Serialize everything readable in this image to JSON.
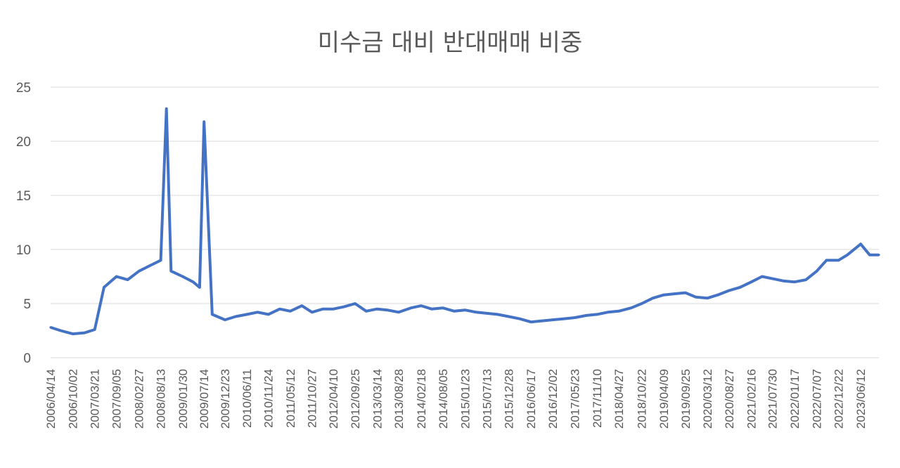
{
  "chart_data": {
    "type": "line",
    "title": "미수금 대비 반대매매 비중",
    "xlabel": "",
    "ylabel": "",
    "ylim": [
      0,
      25
    ],
    "yticks": [
      0,
      5,
      10,
      15,
      20,
      25
    ],
    "grid": true,
    "legend": "none",
    "colors": {
      "line": "#4472c4",
      "grid": "#d9d9d9",
      "text": "#595959"
    },
    "x_range": [
      "2006/04/14",
      "2023/10/31"
    ],
    "xtick_labels": [
      "2006/04/14",
      "2006/10/02",
      "2007/03/21",
      "2007/09/05",
      "2008/02/27",
      "2008/08/13",
      "2009/01/30",
      "2009/07/14",
      "2009/12/23",
      "2010/06/11",
      "2010/11/24",
      "2011/05/12",
      "2011/10/27",
      "2012/04/10",
      "2012/09/25",
      "2013/03/14",
      "2013/08/28",
      "2014/02/18",
      "2014/08/05",
      "2015/01/23",
      "2015/07/13",
      "2015/12/28",
      "2016/06/17",
      "2016/12/02",
      "2017/05/23",
      "2017/11/10",
      "2018/04/27",
      "2018/10/22",
      "2019/04/09",
      "2019/09/25",
      "2020/03/12",
      "2020/08/27",
      "2021/02/16",
      "2021/07/30",
      "2022/01/17",
      "2022/07/07",
      "2022/12/22",
      "2023/06/12"
    ],
    "series": [
      {
        "x": [
          "2006/04/14",
          "2006/07/01",
          "2006/10/02",
          "2007/01/02",
          "2007/03/21",
          "2007/06/01",
          "2007/09/05",
          "2007/12/01",
          "2008/02/27",
          "2008/05/20",
          "2008/08/13",
          "2008/09/26",
          "2008/11/01",
          "2009/01/30",
          "2009/04/20",
          "2009/06/10",
          "2009/07/14",
          "2009/09/15",
          "2009/12/23",
          "2010/03/15",
          "2010/06/11",
          "2010/09/01",
          "2010/11/24",
          "2011/02/20",
          "2011/05/12",
          "2011/08/10",
          "2011/10/27",
          "2012/01/20",
          "2012/04/10",
          "2012/07/01",
          "2012/09/25",
          "2012/12/20",
          "2013/03/14",
          "2013/06/01",
          "2013/08/28",
          "2013/12/01",
          "2014/02/18",
          "2014/05/10",
          "2014/08/05",
          "2014/11/01",
          "2015/01/23",
          "2015/04/20",
          "2015/07/13",
          "2015/10/01",
          "2015/12/28",
          "2016/03/20",
          "2016/06/17",
          "2016/09/10",
          "2016/12/02",
          "2017/03/01",
          "2017/05/23",
          "2017/08/20",
          "2017/11/10",
          "2018/02/01",
          "2018/04/27",
          "2018/08/01",
          "2018/10/22",
          "2019/01/15",
          "2019/04/09",
          "2019/07/01",
          "2019/09/25",
          "2019/12/15",
          "2020/03/12",
          "2020/06/01",
          "2020/08/27",
          "2020/11/20",
          "2021/02/16",
          "2021/05/10",
          "2021/07/30",
          "2021/10/20",
          "2022/01/17",
          "2022/04/15",
          "2022/07/07",
          "2022/09/20",
          "2022/12/22",
          "2023/03/01",
          "2023/06/12",
          "2023/08/20",
          "2023/10/31"
        ],
        "values": [
          2.8,
          2.5,
          2.2,
          2.3,
          2.6,
          6.5,
          7.5,
          7.2,
          8.0,
          8.5,
          9.0,
          23.0,
          8.0,
          7.5,
          7.0,
          6.5,
          21.8,
          4.0,
          3.5,
          3.8,
          4.0,
          4.2,
          4.0,
          4.5,
          4.3,
          4.8,
          4.2,
          4.5,
          4.5,
          4.7,
          5.0,
          4.3,
          4.5,
          4.4,
          4.2,
          4.6,
          4.8,
          4.5,
          4.6,
          4.3,
          4.4,
          4.2,
          4.1,
          4.0,
          3.8,
          3.6,
          3.3,
          3.4,
          3.5,
          3.6,
          3.7,
          3.9,
          4.0,
          4.2,
          4.3,
          4.6,
          5.0,
          5.5,
          5.8,
          5.9,
          6.0,
          5.6,
          5.5,
          5.8,
          6.2,
          6.5,
          7.0,
          7.5,
          7.3,
          7.1,
          7.0,
          7.2,
          8.0,
          9.0,
          9.0,
          9.5,
          10.5,
          9.5,
          9.5
        ]
      }
    ]
  }
}
